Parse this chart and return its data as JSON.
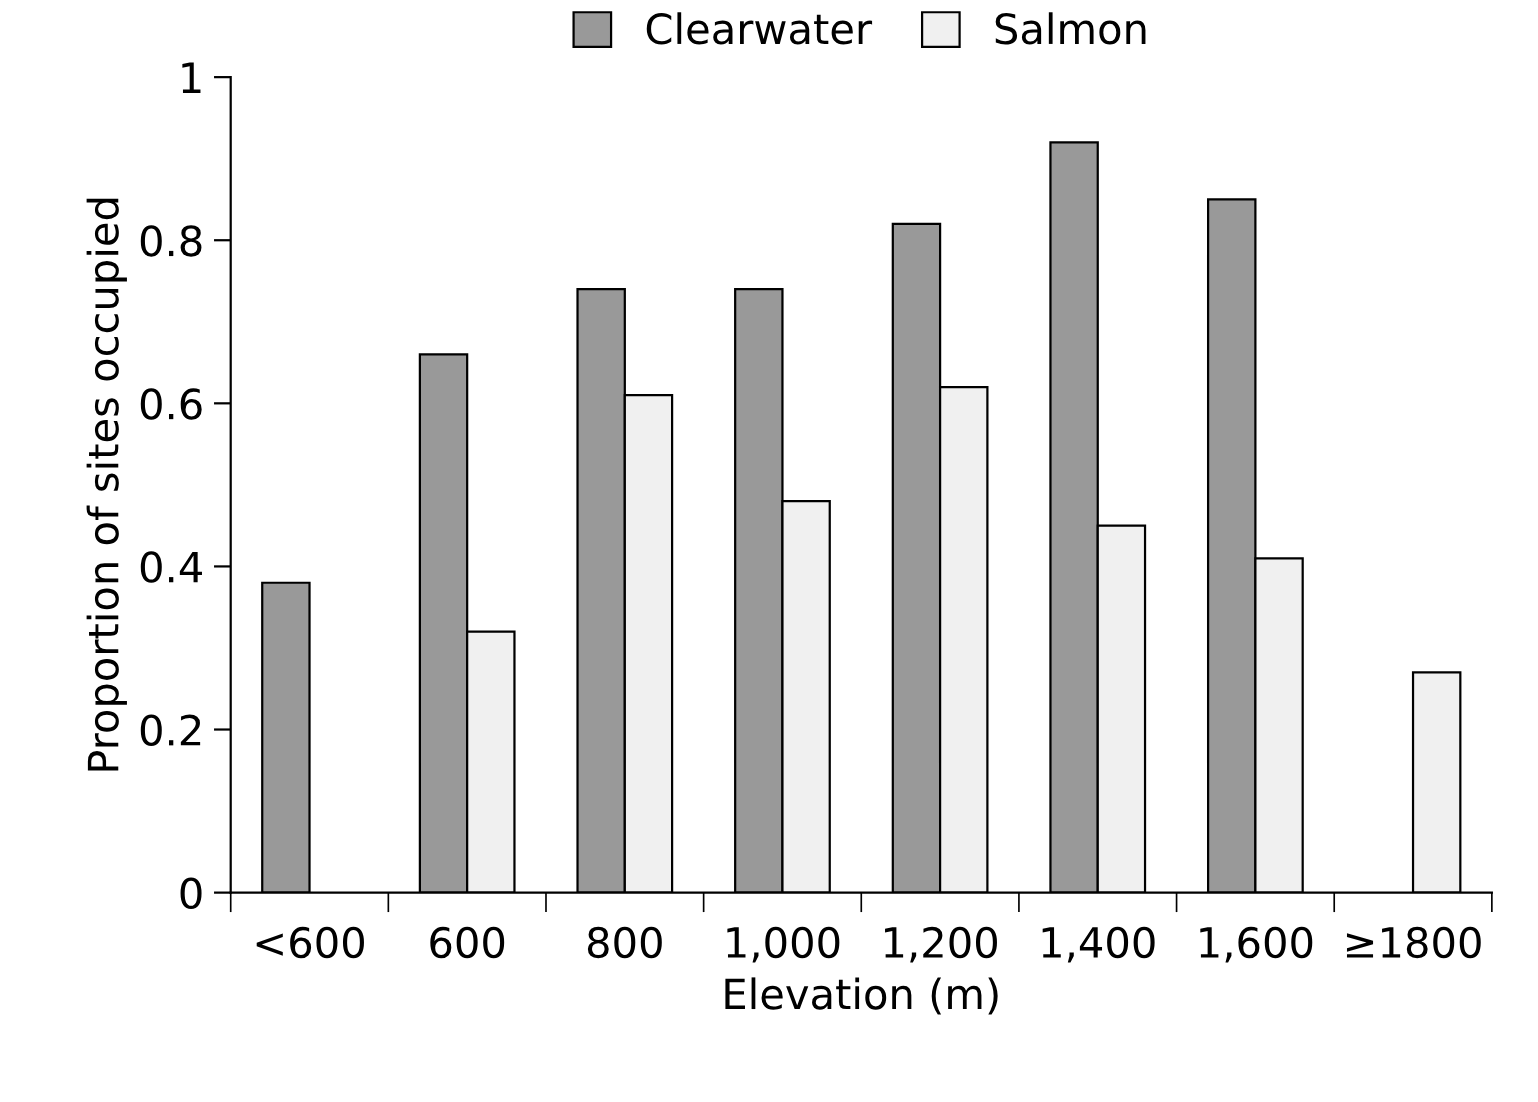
{
  "chart_data": {
    "type": "bar",
    "categories": [
      "<600",
      "600",
      "800",
      "1,000",
      "1,200",
      "1,400",
      "1,600",
      "≥1800"
    ],
    "series": [
      {
        "name": "Clearwater",
        "color": "#999999",
        "values": [
          0.38,
          0.66,
          0.74,
          0.74,
          0.82,
          0.92,
          0.85,
          null
        ]
      },
      {
        "name": "Salmon",
        "color": "#f0f0f0",
        "values": [
          null,
          0.32,
          0.61,
          0.48,
          0.62,
          0.45,
          0.41,
          0.27
        ]
      }
    ],
    "xlabel": "Elevation (m)",
    "ylabel": "Proportion of sites occupied",
    "ylim": [
      0,
      1
    ],
    "yticks": [
      0,
      0.2,
      0.4,
      0.6,
      0.8,
      1
    ],
    "grid": false,
    "legend": "top"
  }
}
